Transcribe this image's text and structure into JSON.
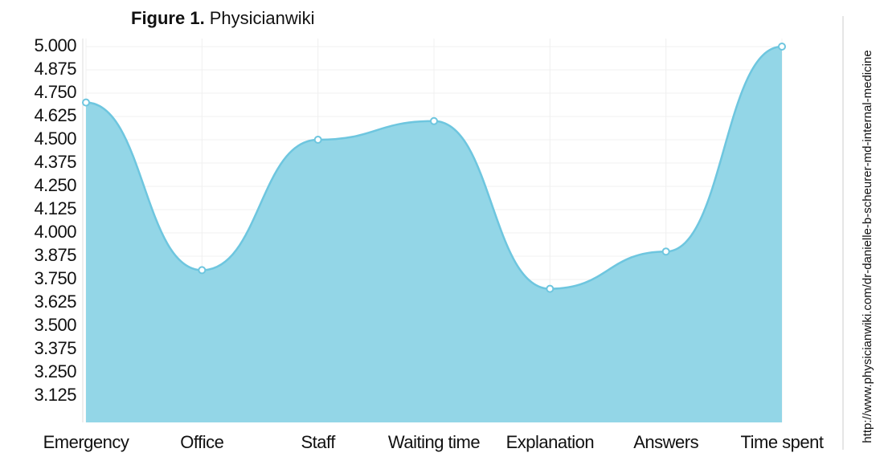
{
  "chart_data": {
    "type": "area",
    "figure_label": "Figure 1.",
    "title": "Physicianwiki",
    "source": "http://www.physicianwiki.com/dr-danielle-b-scheurer-md-internal-medicine",
    "categories": [
      "Emergency",
      "Office",
      "Staff",
      "Waiting time",
      "Explanation",
      "Answers",
      "Time spent"
    ],
    "values": [
      4.7,
      3.8,
      4.5,
      4.6,
      3.7,
      3.9,
      5.0
    ],
    "color": "#6ec6df",
    "fill_color": "#93d6e7",
    "ylim": [
      3.0,
      5.0
    ],
    "yticks": [
      {
        "value": 3.125,
        "label": "3.125"
      },
      {
        "value": 3.25,
        "label": "3.250"
      },
      {
        "value": 3.375,
        "label": "3.375"
      },
      {
        "value": 3.5,
        "label": "3.500"
      },
      {
        "value": 3.625,
        "label": "3.625"
      },
      {
        "value": 3.75,
        "label": "3.750"
      },
      {
        "value": 3.875,
        "label": "3.875"
      },
      {
        "value": 4.0,
        "label": "4.000"
      },
      {
        "value": 4.125,
        "label": "4.125"
      },
      {
        "value": 4.25,
        "label": "4.250"
      },
      {
        "value": 4.375,
        "label": "4.375"
      },
      {
        "value": 4.5,
        "label": "4.500"
      },
      {
        "value": 4.625,
        "label": "4.625"
      },
      {
        "value": 4.75,
        "label": "4.750"
      },
      {
        "value": 4.875,
        "label": "4.875"
      },
      {
        "value": 5.0,
        "label": "5.000"
      }
    ],
    "grid": true
  }
}
